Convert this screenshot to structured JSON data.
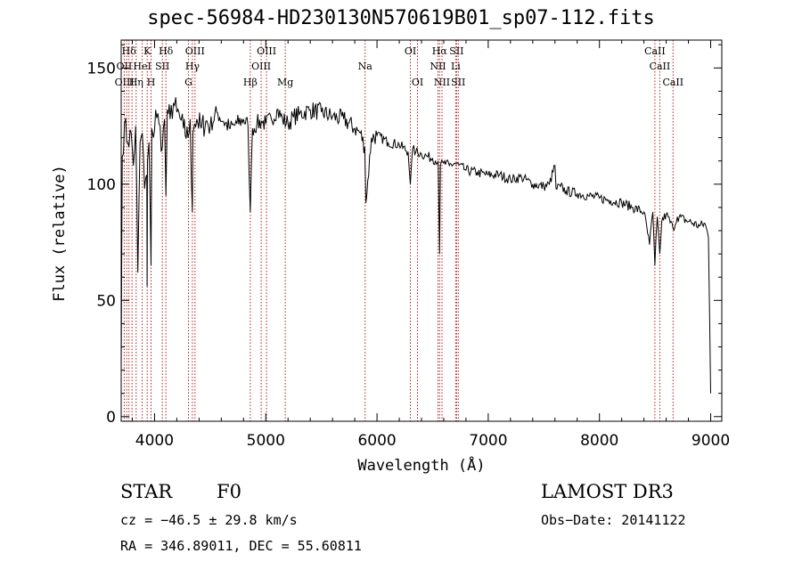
{
  "chart_data": {
    "type": "line",
    "title": "spec-56984-HD230130N570619B01_sp07-112.fits",
    "xlabel": "Wavelength (Å)",
    "ylabel": "Flux (relative)",
    "xlim": [
      3700,
      9100
    ],
    "ylim": [
      -2,
      162
    ],
    "xticks": [
      4000,
      5000,
      6000,
      7000,
      8000,
      9000
    ],
    "yticks": [
      0,
      50,
      100,
      150
    ],
    "grid": false,
    "series": [
      {
        "name": "flux",
        "x": [
          3700,
          3705,
          3710,
          3730,
          3760,
          3790,
          3810,
          3830,
          3850,
          3870,
          3890,
          3910,
          3930,
          3933,
          3936,
          3950,
          3968,
          3975,
          3990,
          4010,
          4040,
          4070,
          4090,
          4102,
          4115,
          4140,
          4170,
          4200,
          4230,
          4260,
          4300,
          4320,
          4340,
          4345,
          4360,
          4380,
          4420,
          4460,
          4500,
          4560,
          4620,
          4680,
          4740,
          4800,
          4840,
          4861,
          4880,
          4920,
          4960,
          5000,
          5050,
          5100,
          5150,
          5200,
          5250,
          5300,
          5400,
          5500,
          5600,
          5700,
          5800,
          5850,
          5890,
          5900,
          5950,
          6000,
          6100,
          6200,
          6280,
          6300,
          6320,
          6350,
          6400,
          6450,
          6500,
          6550,
          6563,
          6570,
          6600,
          6650,
          6700,
          6800,
          6900,
          7000,
          7100,
          7200,
          7300,
          7400,
          7500,
          7550,
          7600,
          7610,
          7650,
          7700,
          7800,
          7900,
          8000,
          8100,
          8200,
          8300,
          8400,
          8450,
          8480,
          8498,
          8520,
          8542,
          8560,
          8600,
          8662,
          8700,
          8800,
          8900,
          8950,
          8980,
          9000
        ],
        "values": [
          18,
          70,
          112,
          126,
          118,
          122,
          108,
          125,
          62,
          118,
          122,
          98,
          104,
          56,
          110,
          118,
          65,
          124,
          120,
          132,
          126,
          116,
          128,
          95,
          132,
          128,
          135,
          131,
          128,
          124,
          120,
          128,
          88,
          122,
          126,
          128,
          124,
          127,
          125,
          131,
          127,
          124,
          126,
          128,
          125,
          88,
          124,
          126,
          127,
          126,
          128,
          132,
          128,
          126,
          129,
          130,
          132,
          131,
          129,
          128,
          124,
          122,
          116,
          92,
          120,
          121,
          118,
          117,
          114,
          100,
          115,
          114,
          113,
          112,
          111,
          110,
          70,
          108,
          109,
          108,
          109,
          106,
          105,
          104,
          104,
          102,
          103,
          100,
          99,
          100,
          108,
          98,
          99,
          97,
          96,
          95,
          94,
          93,
          92,
          90,
          88,
          74,
          88,
          65,
          86,
          70,
          84,
          87,
          81,
          86,
          84,
          82,
          83,
          77,
          10
        ]
      }
    ],
    "annotations": [
      {
        "text": "Hδ",
        "x": 3770,
        "row": 0
      },
      {
        "text": "K",
        "x": 3934,
        "row": 0
      },
      {
        "text": "Hδ",
        "x": 4102,
        "row": 0
      },
      {
        "text": "OIII",
        "x": 4363,
        "row": 0
      },
      {
        "text": "OIII",
        "x": 5007,
        "row": 0
      },
      {
        "text": "OI",
        "x": 6300,
        "row": 0
      },
      {
        "text": "Hα",
        "x": 6563,
        "row": 0
      },
      {
        "text": "SII",
        "x": 6716,
        "row": 0
      },
      {
        "text": "CaII",
        "x": 8498,
        "row": 0
      },
      {
        "text": "OII",
        "x": 3727,
        "row": 1
      },
      {
        "text": "HeI",
        "x": 3889,
        "row": 1
      },
      {
        "text": "SII",
        "x": 4070,
        "row": 1
      },
      {
        "text": "Hγ",
        "x": 4340,
        "row": 1
      },
      {
        "text": "OIII",
        "x": 4959,
        "row": 1
      },
      {
        "text": "Na",
        "x": 5893,
        "row": 1
      },
      {
        "text": "NII",
        "x": 6548,
        "row": 1
      },
      {
        "text": "Li",
        "x": 6708,
        "row": 1
      },
      {
        "text": "CaII",
        "x": 8542,
        "row": 1
      },
      {
        "text": "OIII",
        "x": 3730,
        "row": 2
      },
      {
        "text": "Hη",
        "x": 3835,
        "row": 2
      },
      {
        "text": "H",
        "x": 3968,
        "row": 2
      },
      {
        "text": "G",
        "x": 4305,
        "row": 2
      },
      {
        "text": "Hβ",
        "x": 4861,
        "row": 2
      },
      {
        "text": "Mg",
        "x": 5175,
        "row": 2
      },
      {
        "text": "OI",
        "x": 6364,
        "row": 2
      },
      {
        "text": "NII",
        "x": 6584,
        "row": 2
      },
      {
        "text": "SII",
        "x": 6731,
        "row": 2
      },
      {
        "text": "CaII",
        "x": 8662,
        "row": 2
      }
    ],
    "line_markers": [
      3727,
      3750,
      3770,
      3798,
      3835,
      3889,
      3934,
      3968,
      4070,
      4102,
      4305,
      4340,
      4363,
      4861,
      4959,
      5007,
      5175,
      5893,
      6300,
      6364,
      6548,
      6563,
      6584,
      6708,
      6716,
      6731,
      8498,
      8542,
      8662
    ]
  },
  "info": {
    "object_class": "STAR",
    "subclass": "F0",
    "survey": "LAMOST DR3",
    "cz": "cz = −46.5 ± 29.8 km/s",
    "obs_date": "Obs−Date: 20141122",
    "coords": "RA = 346.89011, DEC =  55.60811"
  },
  "colors": {
    "spectrum": "#000000",
    "marker": "#b22222",
    "axis": "#000000"
  }
}
